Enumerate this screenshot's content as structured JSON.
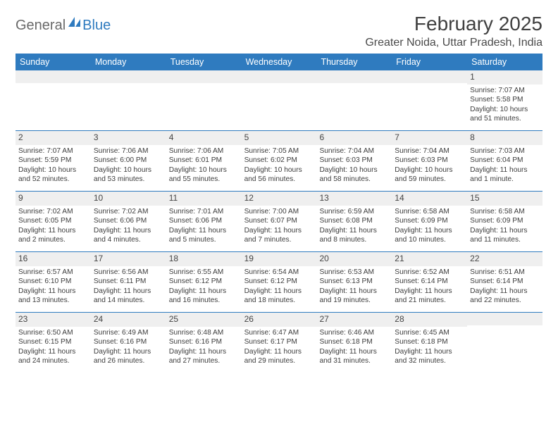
{
  "logo": {
    "part1": "General",
    "part2": "Blue"
  },
  "title": "February 2025",
  "location": "Greater Noida, Uttar Pradesh, India",
  "colors": {
    "brand_blue": "#2f7bbf",
    "header_gray": "#efefef",
    "text": "#3a3a3a",
    "background": "#ffffff"
  },
  "fonts": {
    "title_size_pt": 21,
    "location_size_pt": 12,
    "dow_size_pt": 9.5,
    "daynum_size_pt": 9,
    "body_size_pt": 7.7
  },
  "dow": [
    "Sunday",
    "Monday",
    "Tuesday",
    "Wednesday",
    "Thursday",
    "Friday",
    "Saturday"
  ],
  "weeks": [
    [
      {
        "n": "",
        "sr": "",
        "ss": "",
        "dl": ""
      },
      {
        "n": "",
        "sr": "",
        "ss": "",
        "dl": ""
      },
      {
        "n": "",
        "sr": "",
        "ss": "",
        "dl": ""
      },
      {
        "n": "",
        "sr": "",
        "ss": "",
        "dl": ""
      },
      {
        "n": "",
        "sr": "",
        "ss": "",
        "dl": ""
      },
      {
        "n": "",
        "sr": "",
        "ss": "",
        "dl": ""
      },
      {
        "n": "1",
        "sr": "Sunrise: 7:07 AM",
        "ss": "Sunset: 5:58 PM",
        "dl": "Daylight: 10 hours and 51 minutes."
      }
    ],
    [
      {
        "n": "2",
        "sr": "Sunrise: 7:07 AM",
        "ss": "Sunset: 5:59 PM",
        "dl": "Daylight: 10 hours and 52 minutes."
      },
      {
        "n": "3",
        "sr": "Sunrise: 7:06 AM",
        "ss": "Sunset: 6:00 PM",
        "dl": "Daylight: 10 hours and 53 minutes."
      },
      {
        "n": "4",
        "sr": "Sunrise: 7:06 AM",
        "ss": "Sunset: 6:01 PM",
        "dl": "Daylight: 10 hours and 55 minutes."
      },
      {
        "n": "5",
        "sr": "Sunrise: 7:05 AM",
        "ss": "Sunset: 6:02 PM",
        "dl": "Daylight: 10 hours and 56 minutes."
      },
      {
        "n": "6",
        "sr": "Sunrise: 7:04 AM",
        "ss": "Sunset: 6:03 PM",
        "dl": "Daylight: 10 hours and 58 minutes."
      },
      {
        "n": "7",
        "sr": "Sunrise: 7:04 AM",
        "ss": "Sunset: 6:03 PM",
        "dl": "Daylight: 10 hours and 59 minutes."
      },
      {
        "n": "8",
        "sr": "Sunrise: 7:03 AM",
        "ss": "Sunset: 6:04 PM",
        "dl": "Daylight: 11 hours and 1 minute."
      }
    ],
    [
      {
        "n": "9",
        "sr": "Sunrise: 7:02 AM",
        "ss": "Sunset: 6:05 PM",
        "dl": "Daylight: 11 hours and 2 minutes."
      },
      {
        "n": "10",
        "sr": "Sunrise: 7:02 AM",
        "ss": "Sunset: 6:06 PM",
        "dl": "Daylight: 11 hours and 4 minutes."
      },
      {
        "n": "11",
        "sr": "Sunrise: 7:01 AM",
        "ss": "Sunset: 6:06 PM",
        "dl": "Daylight: 11 hours and 5 minutes."
      },
      {
        "n": "12",
        "sr": "Sunrise: 7:00 AM",
        "ss": "Sunset: 6:07 PM",
        "dl": "Daylight: 11 hours and 7 minutes."
      },
      {
        "n": "13",
        "sr": "Sunrise: 6:59 AM",
        "ss": "Sunset: 6:08 PM",
        "dl": "Daylight: 11 hours and 8 minutes."
      },
      {
        "n": "14",
        "sr": "Sunrise: 6:58 AM",
        "ss": "Sunset: 6:09 PM",
        "dl": "Daylight: 11 hours and 10 minutes."
      },
      {
        "n": "15",
        "sr": "Sunrise: 6:58 AM",
        "ss": "Sunset: 6:09 PM",
        "dl": "Daylight: 11 hours and 11 minutes."
      }
    ],
    [
      {
        "n": "16",
        "sr": "Sunrise: 6:57 AM",
        "ss": "Sunset: 6:10 PM",
        "dl": "Daylight: 11 hours and 13 minutes."
      },
      {
        "n": "17",
        "sr": "Sunrise: 6:56 AM",
        "ss": "Sunset: 6:11 PM",
        "dl": "Daylight: 11 hours and 14 minutes."
      },
      {
        "n": "18",
        "sr": "Sunrise: 6:55 AM",
        "ss": "Sunset: 6:12 PM",
        "dl": "Daylight: 11 hours and 16 minutes."
      },
      {
        "n": "19",
        "sr": "Sunrise: 6:54 AM",
        "ss": "Sunset: 6:12 PM",
        "dl": "Daylight: 11 hours and 18 minutes."
      },
      {
        "n": "20",
        "sr": "Sunrise: 6:53 AM",
        "ss": "Sunset: 6:13 PM",
        "dl": "Daylight: 11 hours and 19 minutes."
      },
      {
        "n": "21",
        "sr": "Sunrise: 6:52 AM",
        "ss": "Sunset: 6:14 PM",
        "dl": "Daylight: 11 hours and 21 minutes."
      },
      {
        "n": "22",
        "sr": "Sunrise: 6:51 AM",
        "ss": "Sunset: 6:14 PM",
        "dl": "Daylight: 11 hours and 22 minutes."
      }
    ],
    [
      {
        "n": "23",
        "sr": "Sunrise: 6:50 AM",
        "ss": "Sunset: 6:15 PM",
        "dl": "Daylight: 11 hours and 24 minutes."
      },
      {
        "n": "24",
        "sr": "Sunrise: 6:49 AM",
        "ss": "Sunset: 6:16 PM",
        "dl": "Daylight: 11 hours and 26 minutes."
      },
      {
        "n": "25",
        "sr": "Sunrise: 6:48 AM",
        "ss": "Sunset: 6:16 PM",
        "dl": "Daylight: 11 hours and 27 minutes."
      },
      {
        "n": "26",
        "sr": "Sunrise: 6:47 AM",
        "ss": "Sunset: 6:17 PM",
        "dl": "Daylight: 11 hours and 29 minutes."
      },
      {
        "n": "27",
        "sr": "Sunrise: 6:46 AM",
        "ss": "Sunset: 6:18 PM",
        "dl": "Daylight: 11 hours and 31 minutes."
      },
      {
        "n": "28",
        "sr": "Sunrise: 6:45 AM",
        "ss": "Sunset: 6:18 PM",
        "dl": "Daylight: 11 hours and 32 minutes."
      },
      {
        "n": "",
        "sr": "",
        "ss": "",
        "dl": ""
      }
    ]
  ]
}
